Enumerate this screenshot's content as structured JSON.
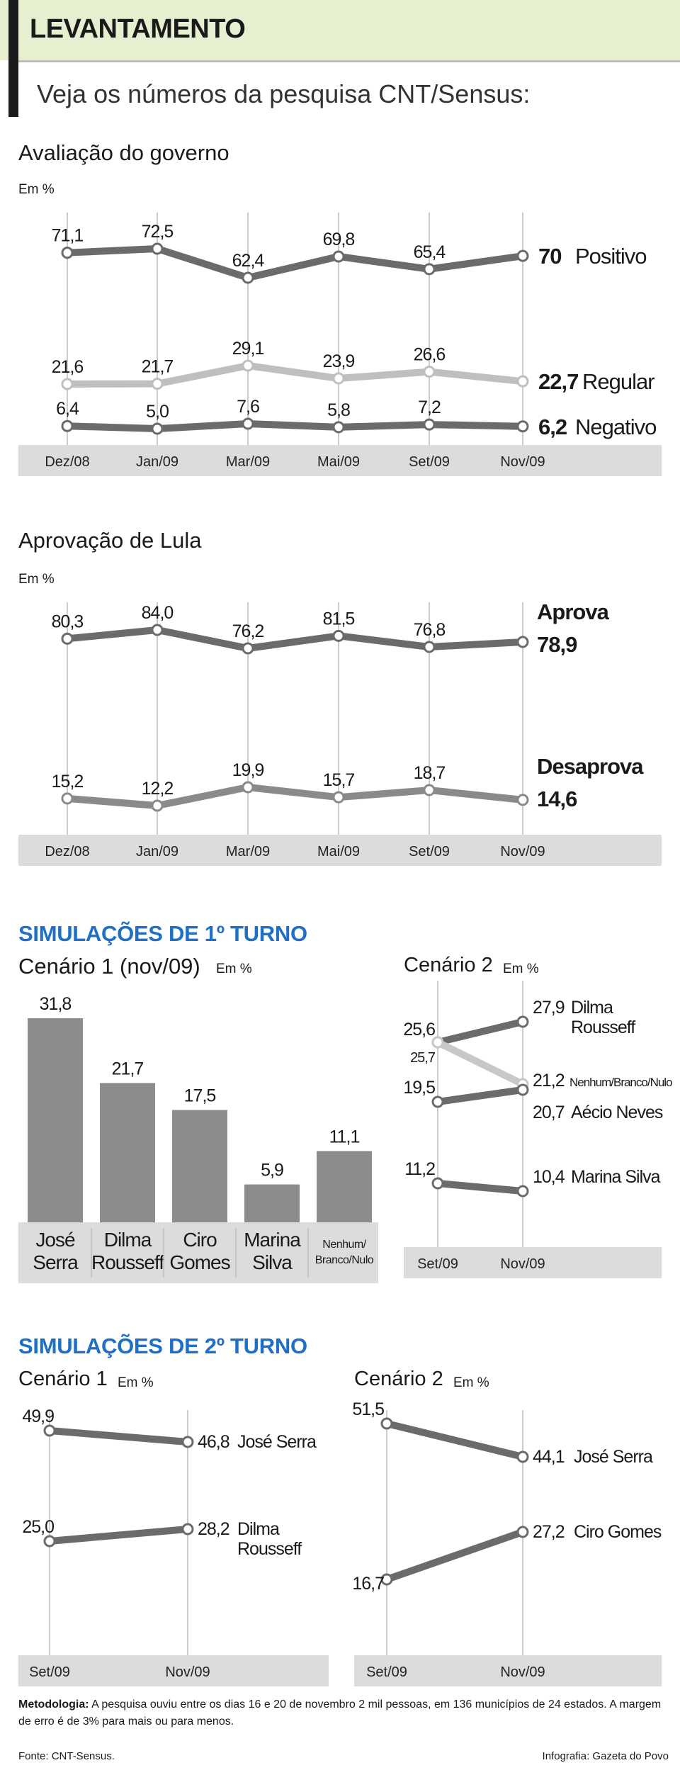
{
  "header": {
    "title": "LEVANTAMENTO",
    "subtitle": "Veja os números da pesquisa CNT/Sensus:"
  },
  "sections": {
    "turno1": "SIMULAÇÕES DE 1º TURNO",
    "turno2": "SIMULAÇÕES DE 2º TURNO"
  },
  "footer": {
    "metodologia_label": "Metodologia:",
    "metodologia_text": "A pesquisa ouviu entre os dias 16 e 20 de novembro 2 mil pessoas, em 136 municípios de 24 estados. A margem de erro é de 3% para mais ou para menos.",
    "fonte": "Fonte: CNT-Sensus.",
    "infografia": "Infografia: Gazeta do Povo"
  },
  "colors": {
    "dark": "#6b6b6b",
    "light": "#bfbfbf",
    "axis_band": "#dcdcdc",
    "accent_blue": "#1f6fc6",
    "header_band": "#e6efcf"
  },
  "chart_data": [
    {
      "id": "avaliacao",
      "type": "line",
      "title": "Avaliação do governo",
      "unit": "Em %",
      "categories": [
        "Dez/08",
        "Jan/09",
        "Mar/09",
        "Mai/09",
        "Set/09",
        "Nov/09"
      ],
      "series": [
        {
          "name": "Positivo",
          "values": [
            71.1,
            72.5,
            62.4,
            69.8,
            65.4,
            70
          ],
          "labels": [
            "71,1",
            "72,5",
            "62,4",
            "69,8",
            "65,4",
            "70"
          ],
          "color": "#6b6b6b"
        },
        {
          "name": "Regular",
          "values": [
            21.6,
            21.7,
            29.1,
            23.9,
            26.6,
            22.7
          ],
          "labels": [
            "21,6",
            "21,7",
            "29,1",
            "23,9",
            "26,6",
            "22,7"
          ],
          "color": "#bfbfbf"
        },
        {
          "name": "Negativo",
          "values": [
            6.4,
            5.0,
            7.6,
            5.8,
            7.2,
            6.2
          ],
          "labels": [
            "6,4",
            "5,0",
            "7,6",
            "5,8",
            "7,2",
            "6,2"
          ],
          "color": "#6b6b6b"
        }
      ]
    },
    {
      "id": "aprovacao",
      "type": "line",
      "title": "Aprovação de Lula",
      "unit": "Em %",
      "categories": [
        "Dez/08",
        "Jan/09",
        "Mar/09",
        "Mai/09",
        "Set/09",
        "Nov/09"
      ],
      "series": [
        {
          "name": "Aprova",
          "values": [
            80.3,
            84.0,
            76.2,
            81.5,
            76.8,
            78.9
          ],
          "labels": [
            "80,3",
            "84,0",
            "76,2",
            "81,5",
            "76,8",
            "78,9"
          ],
          "color": "#6b6b6b"
        },
        {
          "name": "Desaprova",
          "values": [
            15.2,
            12.2,
            19.9,
            15.7,
            18.7,
            14.6
          ],
          "labels": [
            "15,2",
            "12,2",
            "19,9",
            "15,7",
            "18,7",
            "14,6"
          ],
          "color": "#8a8a8a"
        }
      ]
    },
    {
      "id": "turno1_c1",
      "type": "bar",
      "title": "Cenário 1 (nov/09)",
      "unit": "Em %",
      "categories": [
        "José Serra",
        "Dilma Rousseff",
        "Ciro Gomes",
        "Marina Silva",
        "Nenhum/Branco/Nulo"
      ],
      "category_lines": [
        [
          "José",
          "Serra"
        ],
        [
          "Dilma",
          "Rousseff"
        ],
        [
          "Ciro",
          "Gomes"
        ],
        [
          "Marina",
          "Silva"
        ],
        [
          "Nenhum/",
          "Branco/Nulo"
        ]
      ],
      "values": [
        31.8,
        21.7,
        17.5,
        5.9,
        11.1
      ],
      "labels": [
        "31,8",
        "21,7",
        "17,5",
        "5,9",
        "11,1"
      ]
    },
    {
      "id": "turno1_c2",
      "type": "line",
      "title": "Cenário 2",
      "unit": "Em %",
      "categories": [
        "Set/09",
        "Nov/09"
      ],
      "series": [
        {
          "name": "Dilma Rousseff",
          "name_lines": [
            "Dilma",
            "Rousseff"
          ],
          "values": [
            25.6,
            27.9
          ],
          "labels": [
            "25,6",
            "27,9"
          ],
          "color": "#6b6b6b"
        },
        {
          "name": "Nenhum/Branco/Nulo",
          "name_lines": [
            "Nenhum/Branco/Nulo"
          ],
          "values": [
            25.7,
            21.2
          ],
          "labels": [
            "25,7",
            "21,2"
          ],
          "color": "#c8c8c8"
        },
        {
          "name": "Aécio Neves",
          "name_lines": [
            "Aécio Neves"
          ],
          "values": [
            19.5,
            20.7
          ],
          "labels": [
            "19,5",
            "20,7"
          ],
          "color": "#6b6b6b"
        },
        {
          "name": "Marina Silva",
          "name_lines": [
            "Marina Silva"
          ],
          "values": [
            11.2,
            10.4
          ],
          "labels": [
            "11,2",
            "10,4"
          ],
          "color": "#6b6b6b"
        }
      ]
    },
    {
      "id": "turno2_c1",
      "type": "line",
      "title": "Cenário 1",
      "unit": "Em %",
      "categories": [
        "Set/09",
        "Nov/09"
      ],
      "series": [
        {
          "name": "José Serra",
          "name_lines": [
            "José Serra"
          ],
          "values": [
            49.9,
            46.8
          ],
          "labels": [
            "49,9",
            "46,8"
          ],
          "color": "#6b6b6b"
        },
        {
          "name": "Dilma Rousseff",
          "name_lines": [
            "Dilma",
            "Rousseff"
          ],
          "values": [
            25.0,
            28.2
          ],
          "labels": [
            "25,0",
            "28,2"
          ],
          "color": "#6b6b6b"
        }
      ]
    },
    {
      "id": "turno2_c2",
      "type": "line",
      "title": "Cenário 2",
      "unit": "Em %",
      "categories": [
        "Set/09",
        "Nov/09"
      ],
      "series": [
        {
          "name": "José Serra",
          "name_lines": [
            "José Serra"
          ],
          "values": [
            51.5,
            44.1
          ],
          "labels": [
            "51,5",
            "44,1"
          ],
          "color": "#6b6b6b"
        },
        {
          "name": "Ciro Gomes",
          "name_lines": [
            "Ciro Gomes"
          ],
          "values": [
            16.7,
            27.2
          ],
          "labels": [
            "16,7",
            "27,2"
          ],
          "color": "#6b6b6b"
        }
      ]
    }
  ]
}
